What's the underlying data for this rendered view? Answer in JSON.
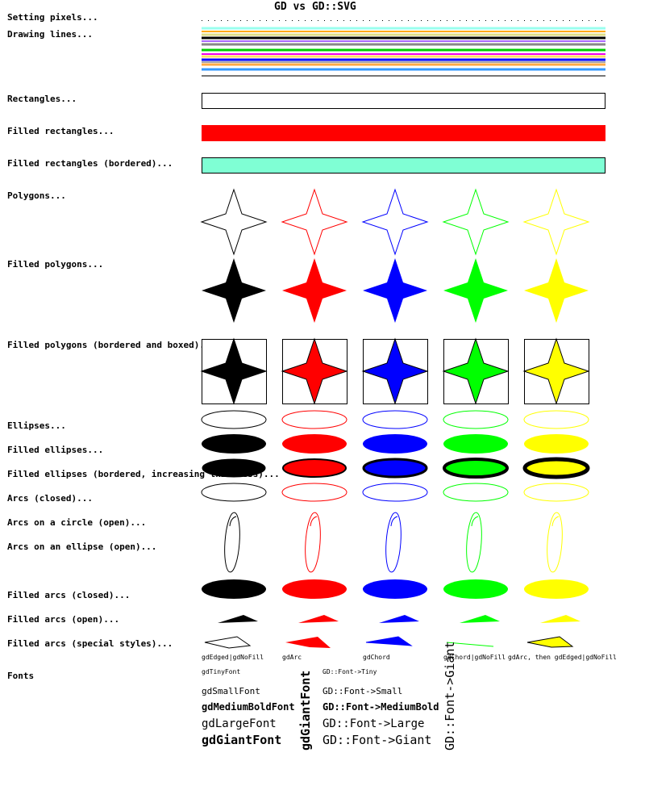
{
  "title": "GD vs GD::SVG",
  "labels": {
    "pixels": "Setting pixels...",
    "lines": "Drawing lines...",
    "rectangles": "Rectangles...",
    "filled_rectangles": "Filled rectangles...",
    "filled_rectangles_bordered": "Filled rectangles (bordered)...",
    "polygons": "Polygons...",
    "filled_polygons": "Filled polygons...",
    "filled_polygons_boxed": "Filled polygons (bordered and boxed)...",
    "ellipses": "Ellipses...",
    "filled_ellipses": "Filled ellipses...",
    "filled_ellipses_bordered": "Filled ellipses (bordered, increasing thickness)...",
    "arcs_closed": "Arcs (closed)...",
    "arcs_circle_open": "Arcs on a circle (open)...",
    "arcs_ellipse_open": "Arcs on an ellipse (open)...",
    "filled_arcs_closed": "Filled arcs (closed)...",
    "filled_arcs_open": "Filled arcs (open)...",
    "filled_arcs_special": "Filled arcs (special styles)...",
    "fonts": "Fonts"
  },
  "arc_styles": [
    "gdEdged|gdNoFill",
    "gdArc",
    "gdChord",
    "gdChord|gdNoFill",
    "gdArc, then gdEdged|gdNoFill"
  ],
  "fonts_gd": {
    "tiny": "gdTinyFont",
    "small": "gdSmallFont",
    "medium": "gdMediumBoldFont",
    "large": "gdLargeFont",
    "giant": "gdGiantFont",
    "vertical": "gdGiantFont"
  },
  "fonts_svg": {
    "tiny": "GD::Font->Tiny",
    "small": "GD::Font->Small",
    "medium": "GD::Font->MediumBold",
    "large": "GD::Font->Large",
    "giant": "GD::Font->Giant",
    "vertical": "GD::Font->Giant"
  },
  "colors": {
    "black": "#000000",
    "red": "#ff0000",
    "blue": "#0000ff",
    "green": "#00ff00",
    "yellow": "#ffff00",
    "aquamarine": "#7fffd4"
  }
}
